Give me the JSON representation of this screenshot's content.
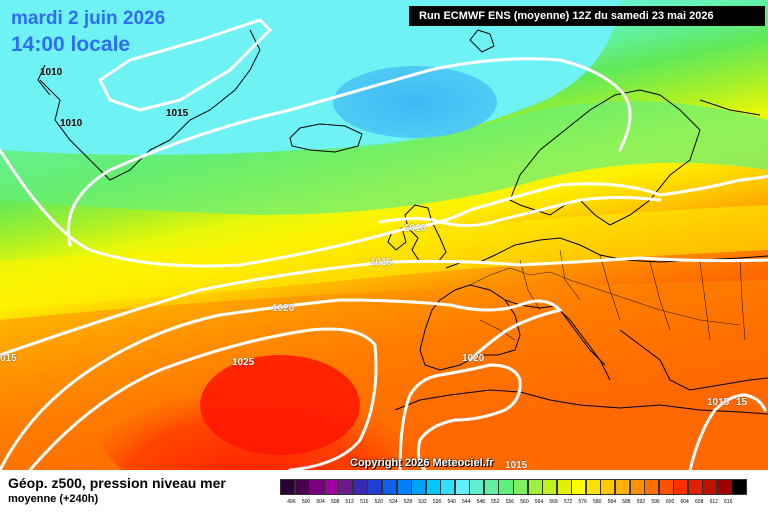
{
  "header": {
    "date": "mardi 2 juin 2026",
    "time": "14:00 locale",
    "run": "Run ECMWF ENS (moyenne) 12Z du samedi 23 mai 2026"
  },
  "copyright": "Copyright 2026 Meteociel.fr",
  "footer": {
    "title": "Géop. z500, pression niveau mer",
    "subtitle": "moyenne    (+240h)"
  },
  "isobar_labels": [
    {
      "id": "1010-a",
      "text": "1010"
    },
    {
      "id": "1010-b",
      "text": "1010"
    },
    {
      "id": "1015-a",
      "text": "1015"
    },
    {
      "id": "1010-c",
      "text": "1010"
    },
    {
      "id": "1015-b",
      "text": "1015"
    },
    {
      "id": "1020-a",
      "text": "1020"
    },
    {
      "id": "1015-c",
      "text": "015"
    },
    {
      "id": "1025-a",
      "text": "1025"
    },
    {
      "id": "1020-b",
      "text": "1020"
    },
    {
      "id": "1015-d",
      "text": "1015"
    },
    {
      "id": "1015-e",
      "text": "15"
    },
    {
      "id": "1015-f",
      "text": "1015"
    }
  ],
  "scale": {
    "labels": [
      "496",
      "500",
      "504",
      "508",
      "512",
      "516",
      "520",
      "524",
      "528",
      "532",
      "536",
      "540",
      "544",
      "548",
      "552",
      "556",
      "560",
      "564",
      "568",
      "572",
      "576",
      "580",
      "584",
      "588",
      "592",
      "596",
      "600",
      "604",
      "608",
      "612",
      "616"
    ],
    "colors": [
      "#2a0033",
      "#4a004d",
      "#7a007f",
      "#a000a0",
      "#6a1a8a",
      "#3a2ab0",
      "#2040d0",
      "#1060f0",
      "#0080ff",
      "#00a0ff",
      "#00c8ff",
      "#30e0ff",
      "#60f0ff",
      "#60f0d0",
      "#60f0a0",
      "#60f080",
      "#80f060",
      "#a0f040",
      "#c0f020",
      "#e0f000",
      "#ffff00",
      "#ffe000",
      "#ffc800",
      "#ffb000",
      "#ff9000",
      "#ff7000",
      "#ff5000",
      "#ff3000",
      "#e02000",
      "#c01000",
      "#a00000",
      "#000000"
    ]
  }
}
